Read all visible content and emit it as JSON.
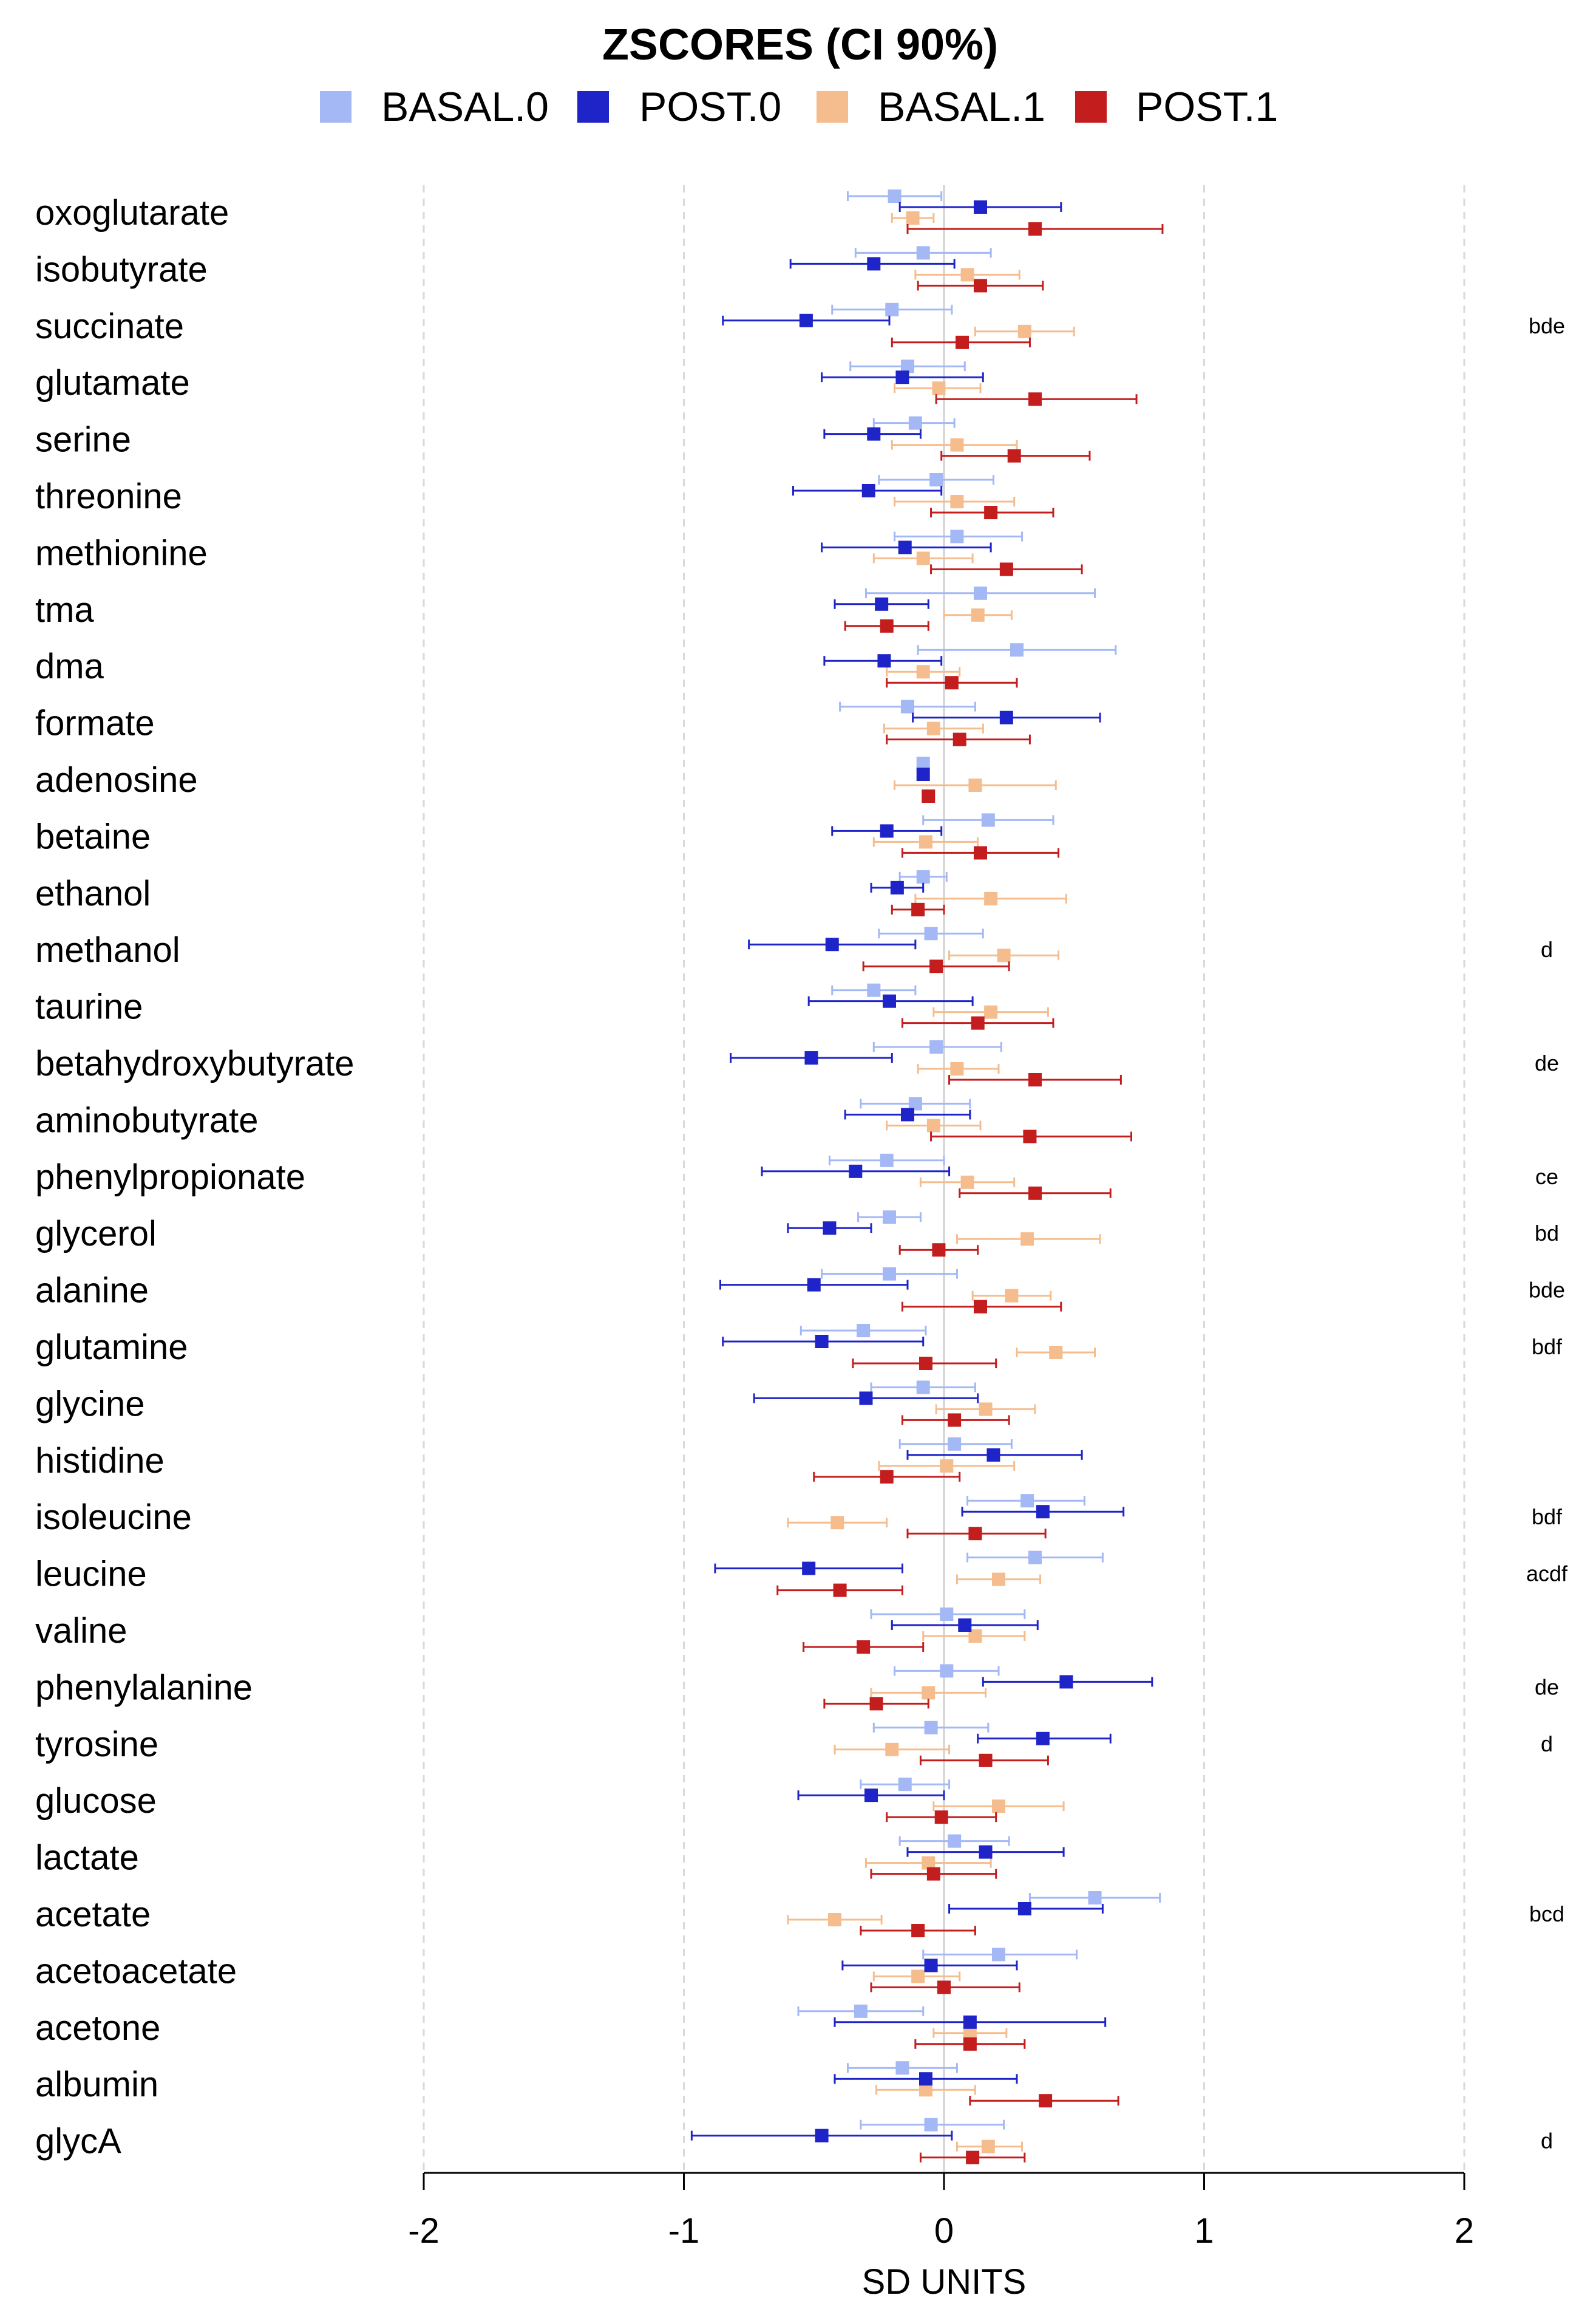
{
  "chart_data": {
    "type": "forest",
    "title": "ZSCORES (CI 90%)",
    "xlabel": "SD UNITS",
    "xlim": [
      -2,
      2
    ],
    "xticks": [
      -2,
      -1,
      0,
      1,
      2
    ],
    "xtick_labels": [
      "-2",
      "-1",
      "0",
      "1",
      "2"
    ],
    "grid": "vertical dashed",
    "legend_position": "top",
    "series": [
      {
        "name": "BASAL.0",
        "color": "#a3b8f5"
      },
      {
        "name": "POST.0",
        "color": "#1f24c8"
      },
      {
        "name": "BASAL.1",
        "color": "#f5bd8e"
      },
      {
        "name": "POST.1",
        "color": "#c31d1d"
      }
    ],
    "rows": [
      {
        "label": "oxoglutarate",
        "sig": "",
        "values": [
          [
            -0.19,
            -0.37,
            -0.01
          ],
          [
            0.14,
            -0.17,
            0.45
          ],
          [
            -0.12,
            -0.2,
            -0.04
          ],
          [
            0.35,
            -0.14,
            0.84
          ]
        ]
      },
      {
        "label": "isobutyrate",
        "sig": "",
        "values": [
          [
            -0.08,
            -0.34,
            0.18
          ],
          [
            -0.27,
            -0.59,
            0.04
          ],
          [
            0.09,
            -0.11,
            0.29
          ],
          [
            0.14,
            -0.1,
            0.38
          ]
        ]
      },
      {
        "label": "succinate",
        "sig": "bde",
        "values": [
          [
            -0.2,
            -0.43,
            0.03
          ],
          [
            -0.53,
            -0.85,
            -0.21
          ],
          [
            0.31,
            0.12,
            0.5
          ],
          [
            0.07,
            -0.2,
            0.33
          ]
        ]
      },
      {
        "label": "glutamate",
        "sig": "",
        "values": [
          [
            -0.14,
            -0.36,
            0.08
          ],
          [
            -0.16,
            -0.47,
            0.15
          ],
          [
            -0.02,
            -0.19,
            0.14
          ],
          [
            0.35,
            -0.03,
            0.74
          ]
        ]
      },
      {
        "label": "serine",
        "sig": "",
        "values": [
          [
            -0.11,
            -0.27,
            0.04
          ],
          [
            -0.27,
            -0.46,
            -0.09
          ],
          [
            0.05,
            -0.2,
            0.28
          ],
          [
            0.27,
            -0.01,
            0.56
          ]
        ]
      },
      {
        "label": "threonine",
        "sig": "",
        "values": [
          [
            -0.03,
            -0.25,
            0.19
          ],
          [
            -0.29,
            -0.58,
            -0.01
          ],
          [
            0.05,
            -0.19,
            0.27
          ],
          [
            0.18,
            -0.05,
            0.42
          ]
        ]
      },
      {
        "label": "methionine",
        "sig": "",
        "values": [
          [
            0.05,
            -0.19,
            0.3
          ],
          [
            -0.15,
            -0.47,
            0.18
          ],
          [
            -0.08,
            -0.27,
            0.11
          ],
          [
            0.24,
            -0.05,
            0.53
          ]
        ]
      },
      {
        "label": "tma",
        "sig": "",
        "values": [
          [
            0.14,
            -0.3,
            0.58
          ],
          [
            -0.24,
            -0.42,
            -0.06
          ],
          [
            0.13,
            0.0,
            0.26
          ],
          [
            -0.22,
            -0.38,
            -0.06
          ]
        ]
      },
      {
        "label": "dma",
        "sig": "",
        "values": [
          [
            0.28,
            -0.1,
            0.66
          ],
          [
            -0.23,
            -0.46,
            -0.01
          ],
          [
            -0.08,
            -0.22,
            0.06
          ],
          [
            0.03,
            -0.22,
            0.28
          ]
        ]
      },
      {
        "label": "formate",
        "sig": "",
        "values": [
          [
            -0.14,
            -0.4,
            0.12
          ],
          [
            0.24,
            -0.12,
            0.6
          ],
          [
            -0.04,
            -0.23,
            0.15
          ],
          [
            0.06,
            -0.22,
            0.33
          ]
        ]
      },
      {
        "label": "adenosine",
        "sig": "",
        "values": [
          [
            -0.08,
            -0.1,
            -0.06
          ],
          [
            -0.08,
            -0.1,
            -0.06
          ],
          [
            0.12,
            -0.19,
            0.43
          ],
          [
            -0.06,
            -0.08,
            -0.04
          ]
        ]
      },
      {
        "label": "betaine",
        "sig": "",
        "values": [
          [
            0.17,
            -0.08,
            0.42
          ],
          [
            -0.22,
            -0.43,
            -0.01
          ],
          [
            -0.07,
            -0.27,
            0.13
          ],
          [
            0.14,
            -0.16,
            0.44
          ]
        ]
      },
      {
        "label": "ethanol",
        "sig": "",
        "values": [
          [
            -0.08,
            -0.17,
            0.01
          ],
          [
            -0.18,
            -0.28,
            -0.08
          ],
          [
            0.18,
            -0.11,
            0.47
          ],
          [
            -0.1,
            -0.2,
            0.0
          ]
        ]
      },
      {
        "label": "methanol",
        "sig": "d",
        "values": [
          [
            -0.05,
            -0.25,
            0.15
          ],
          [
            -0.43,
            -0.75,
            -0.11
          ],
          [
            0.23,
            0.02,
            0.44
          ],
          [
            -0.03,
            -0.31,
            0.25
          ]
        ]
      },
      {
        "label": "taurine",
        "sig": "",
        "values": [
          [
            -0.27,
            -0.43,
            -0.11
          ],
          [
            -0.21,
            -0.52,
            0.11
          ],
          [
            0.18,
            -0.04,
            0.4
          ],
          [
            0.13,
            -0.16,
            0.42
          ]
        ]
      },
      {
        "label": "betahydroxybutyrate",
        "sig": "de",
        "values": [
          [
            -0.03,
            -0.27,
            0.22
          ],
          [
            -0.51,
            -0.82,
            -0.2
          ],
          [
            0.05,
            -0.1,
            0.21
          ],
          [
            0.35,
            0.02,
            0.68
          ]
        ]
      },
      {
        "label": "aminobutyrate",
        "sig": "",
        "values": [
          [
            -0.11,
            -0.32,
            0.1
          ],
          [
            -0.14,
            -0.38,
            0.1
          ],
          [
            -0.04,
            -0.22,
            0.14
          ],
          [
            0.33,
            -0.05,
            0.72
          ]
        ]
      },
      {
        "label": "phenylpropionate",
        "sig": "ce",
        "values": [
          [
            -0.22,
            -0.44,
            0.0
          ],
          [
            -0.34,
            -0.7,
            0.02
          ],
          [
            0.09,
            -0.09,
            0.27
          ],
          [
            0.35,
            0.06,
            0.64
          ]
        ]
      },
      {
        "label": "glycerol",
        "sig": "bd",
        "values": [
          [
            -0.21,
            -0.33,
            -0.09
          ],
          [
            -0.44,
            -0.6,
            -0.28
          ],
          [
            0.32,
            0.05,
            0.6
          ],
          [
            -0.02,
            -0.17,
            0.13
          ]
        ]
      },
      {
        "label": "alanine",
        "sig": "bde",
        "values": [
          [
            -0.21,
            -0.47,
            0.05
          ],
          [
            -0.5,
            -0.86,
            -0.14
          ],
          [
            0.26,
            0.11,
            0.41
          ],
          [
            0.14,
            -0.16,
            0.45
          ]
        ]
      },
      {
        "label": "glutamine",
        "sig": "bdf",
        "values": [
          [
            -0.31,
            -0.55,
            -0.07
          ],
          [
            -0.47,
            -0.85,
            -0.08
          ],
          [
            0.43,
            0.28,
            0.58
          ],
          [
            -0.07,
            -0.35,
            0.2
          ]
        ]
      },
      {
        "label": "glycine",
        "sig": "",
        "values": [
          [
            -0.08,
            -0.28,
            0.12
          ],
          [
            -0.3,
            -0.73,
            0.13
          ],
          [
            0.16,
            -0.03,
            0.35
          ],
          [
            0.04,
            -0.16,
            0.25
          ]
        ]
      },
      {
        "label": "histidine",
        "sig": "",
        "values": [
          [
            0.04,
            -0.17,
            0.26
          ],
          [
            0.19,
            -0.14,
            0.53
          ],
          [
            0.01,
            -0.25,
            0.27
          ],
          [
            -0.22,
            -0.5,
            0.06
          ]
        ]
      },
      {
        "label": "isoleucine",
        "sig": "bdf",
        "values": [
          [
            0.32,
            0.09,
            0.54
          ],
          [
            0.38,
            0.07,
            0.69
          ],
          [
            -0.41,
            -0.6,
            -0.22
          ],
          [
            0.12,
            -0.14,
            0.39
          ]
        ]
      },
      {
        "label": "leucine",
        "sig": "acdf",
        "values": [
          [
            0.35,
            0.09,
            0.61
          ],
          [
            -0.52,
            -0.88,
            -0.16
          ],
          [
            0.21,
            0.05,
            0.37
          ],
          [
            -0.4,
            -0.64,
            -0.16
          ]
        ]
      },
      {
        "label": "valine",
        "sig": "",
        "values": [
          [
            0.01,
            -0.28,
            0.31
          ],
          [
            0.08,
            -0.2,
            0.36
          ],
          [
            0.12,
            -0.08,
            0.31
          ],
          [
            -0.31,
            -0.54,
            -0.08
          ]
        ]
      },
      {
        "label": "phenylalanine",
        "sig": "de",
        "values": [
          [
            0.01,
            -0.19,
            0.21
          ],
          [
            0.47,
            0.15,
            0.8
          ],
          [
            -0.06,
            -0.28,
            0.16
          ],
          [
            -0.26,
            -0.46,
            -0.06
          ]
        ]
      },
      {
        "label": "tyrosine",
        "sig": "d",
        "values": [
          [
            -0.05,
            -0.27,
            0.17
          ],
          [
            0.38,
            0.13,
            0.64
          ],
          [
            -0.2,
            -0.42,
            0.02
          ],
          [
            0.16,
            -0.09,
            0.4
          ]
        ]
      },
      {
        "label": "glucose",
        "sig": "",
        "values": [
          [
            -0.15,
            -0.32,
            0.02
          ],
          [
            -0.28,
            -0.56,
            0.0
          ],
          [
            0.21,
            -0.04,
            0.46
          ],
          [
            -0.01,
            -0.22,
            0.2
          ]
        ]
      },
      {
        "label": "lactate",
        "sig": "",
        "values": [
          [
            0.04,
            -0.17,
            0.25
          ],
          [
            0.16,
            -0.14,
            0.46
          ],
          [
            -0.06,
            -0.3,
            0.18
          ],
          [
            -0.04,
            -0.28,
            0.2
          ]
        ]
      },
      {
        "label": "acetate",
        "sig": "bcd",
        "values": [
          [
            0.58,
            0.33,
            0.83
          ],
          [
            0.31,
            0.02,
            0.61
          ],
          [
            -0.42,
            -0.6,
            -0.24
          ],
          [
            -0.1,
            -0.32,
            0.12
          ]
        ]
      },
      {
        "label": "acetoacetate",
        "sig": "",
        "values": [
          [
            0.21,
            -0.08,
            0.51
          ],
          [
            -0.05,
            -0.39,
            0.28
          ],
          [
            -0.1,
            -0.27,
            0.06
          ],
          [
            0.0,
            -0.28,
            0.29
          ]
        ]
      },
      {
        "label": "acetone",
        "sig": "",
        "values": [
          [
            -0.32,
            -0.56,
            -0.08
          ],
          [
            0.1,
            -0.42,
            0.62
          ],
          [
            0.1,
            -0.04,
            0.24
          ],
          [
            0.1,
            -0.11,
            0.31
          ]
        ]
      },
      {
        "label": "albumin",
        "sig": "",
        "values": [
          [
            -0.16,
            -0.37,
            0.05
          ],
          [
            -0.07,
            -0.42,
            0.28
          ],
          [
            -0.07,
            -0.26,
            0.12
          ],
          [
            0.39,
            0.1,
            0.67
          ]
        ]
      },
      {
        "label": "glycA",
        "sig": "d",
        "values": [
          [
            -0.05,
            -0.32,
            0.23
          ],
          [
            -0.47,
            -0.97,
            0.03
          ],
          [
            0.17,
            0.05,
            0.3
          ],
          [
            0.11,
            -0.09,
            0.31
          ]
        ]
      }
    ]
  }
}
